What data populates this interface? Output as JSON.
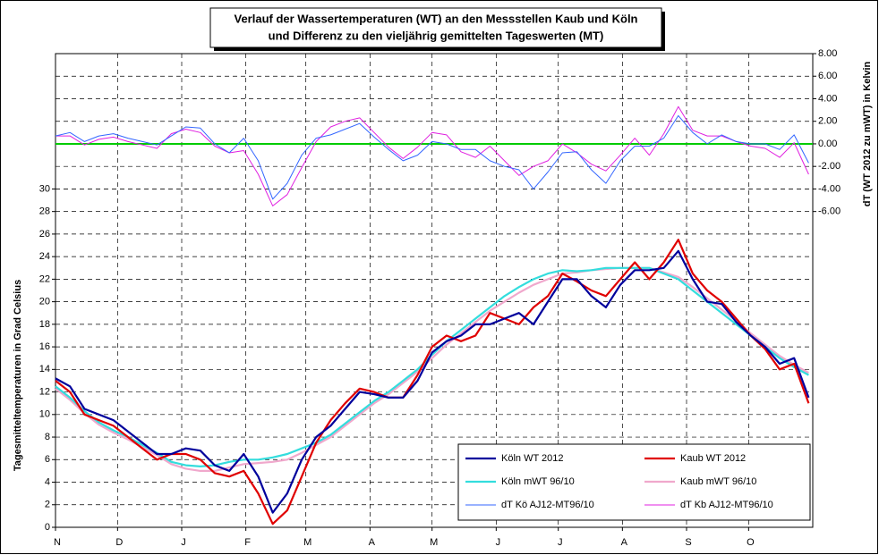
{
  "chart_data": {
    "type": "line",
    "title": [
      "Verlauf der Wassertemperaturen (WT) an den Messstellen Kaub und Köln",
      "und Differenz zu den vieljährig gemittelten Tageswerten (MT)"
    ],
    "y_label": "Tagesmitteltemperaturen in Grad Celsius",
    "y2_label": "dT (WT 2012 zu mWT) in Kelvin",
    "xlim": [
      0,
      366
    ],
    "xticks": [
      {
        "value": 0,
        "label": "N"
      },
      {
        "value": 30,
        "label": "D"
      },
      {
        "value": 61,
        "label": "J"
      },
      {
        "value": 92,
        "label": "F"
      },
      {
        "value": 121,
        "label": "M"
      },
      {
        "value": 152,
        "label": "A"
      },
      {
        "value": 182,
        "label": "M"
      },
      {
        "value": 213,
        "label": "J"
      },
      {
        "value": 243,
        "label": "J"
      },
      {
        "value": 274,
        "label": "A"
      },
      {
        "value": 305,
        "label": "S"
      },
      {
        "value": 335,
        "label": "O"
      }
    ],
    "ylim": [
      0,
      42
    ],
    "yticks": [
      0,
      2,
      4,
      6,
      8,
      10,
      12,
      14,
      16,
      18,
      20,
      22,
      24,
      26,
      28,
      30
    ],
    "y2lim": [
      -34,
      8
    ],
    "y2ticks": [
      {
        "value": 8,
        "label": "8.00"
      },
      {
        "value": 6,
        "label": "6.00"
      },
      {
        "value": 4,
        "label": "4.00"
      },
      {
        "value": 2,
        "label": "2.00"
      },
      {
        "value": 0,
        "label": "0.00"
      },
      {
        "value": -2,
        "label": "-2.00"
      },
      {
        "value": -4,
        "label": "-4.00"
      },
      {
        "value": -6,
        "label": "-6.00"
      }
    ],
    "grid": true,
    "zero_line_color": "#00cc00",
    "legend": "lower right",
    "x": [
      0,
      7,
      14,
      21,
      28,
      35,
      42,
      49,
      56,
      63,
      70,
      77,
      84,
      91,
      98,
      105,
      112,
      119,
      126,
      133,
      140,
      147,
      154,
      161,
      168,
      175,
      182,
      189,
      196,
      203,
      210,
      217,
      224,
      231,
      238,
      245,
      252,
      259,
      266,
      273,
      280,
      287,
      294,
      301,
      308,
      315,
      322,
      329,
      336,
      343,
      350,
      357,
      364
    ],
    "series": [
      {
        "name": "Köln WT 2012",
        "color": "#00009c",
        "width": 2.2,
        "values": [
          13.2,
          12.5,
          10.5,
          10.0,
          9.5,
          8.5,
          7.5,
          6.5,
          6.5,
          7.0,
          6.8,
          5.5,
          5.0,
          6.5,
          4.5,
          1.3,
          3.0,
          6.0,
          8.0,
          9.0,
          10.5,
          12.0,
          11.8,
          11.5,
          11.5,
          13.0,
          15.5,
          16.5,
          17.0,
          18.0,
          18.0,
          18.5,
          19.0,
          18.0,
          20.0,
          22.0,
          22.0,
          20.5,
          19.5,
          21.5,
          22.8,
          22.8,
          23.0,
          24.5,
          22.0,
          20.0,
          19.8,
          18.2,
          17.0,
          16.0,
          14.5,
          15.0,
          11.5
        ]
      },
      {
        "name": "Kaub WT 2012",
        "color": "#e00000",
        "width": 2.2,
        "values": [
          13.0,
          12.0,
          10.0,
          9.5,
          9.0,
          8.0,
          7.0,
          6.0,
          6.5,
          6.5,
          6.0,
          4.8,
          4.5,
          5.0,
          3.0,
          0.3,
          1.5,
          4.5,
          7.5,
          9.5,
          11.0,
          12.3,
          12.0,
          11.5,
          11.5,
          13.5,
          16.0,
          17.0,
          16.5,
          17.0,
          19.0,
          18.5,
          18.0,
          19.5,
          20.5,
          22.5,
          21.8,
          21.0,
          20.5,
          22.0,
          23.5,
          22.0,
          23.5,
          25.5,
          22.5,
          21.0,
          20.0,
          18.5,
          17.0,
          15.8,
          14.0,
          14.5,
          11.0
        ]
      },
      {
        "name": "Köln mWT 96/10",
        "color": "#33dddd",
        "width": 2.2,
        "values": [
          12.5,
          11.5,
          10.3,
          9.3,
          8.6,
          8.0,
          7.3,
          6.6,
          5.8,
          5.5,
          5.4,
          5.5,
          5.8,
          6.0,
          6.0,
          6.2,
          6.5,
          7.0,
          7.5,
          8.2,
          9.2,
          10.2,
          11.2,
          12.0,
          13.0,
          14.0,
          15.3,
          16.5,
          17.5,
          18.5,
          19.5,
          20.5,
          21.3,
          22.0,
          22.5,
          22.8,
          22.7,
          22.8,
          23.0,
          23.0,
          23.0,
          23.0,
          22.5,
          22.0,
          21.0,
          20.0,
          19.0,
          18.0,
          17.0,
          16.0,
          15.0,
          14.2,
          13.5
        ]
      },
      {
        "name": "Kaub mWT 96/10",
        "color": "#f0a8cc",
        "width": 2.2,
        "values": [
          12.3,
          11.3,
          10.1,
          9.1,
          8.4,
          7.8,
          7.1,
          6.4,
          5.6,
          5.2,
          5.0,
          5.0,
          5.3,
          5.6,
          5.7,
          5.8,
          6.0,
          6.6,
          7.3,
          8.0,
          9.0,
          10.0,
          11.0,
          11.8,
          12.8,
          13.8,
          15.0,
          16.2,
          17.2,
          18.2,
          19.2,
          20.0,
          20.8,
          21.5,
          22.0,
          22.5,
          22.6,
          22.8,
          22.9,
          23.0,
          23.0,
          23.0,
          22.6,
          22.2,
          21.3,
          20.3,
          19.3,
          18.3,
          17.2,
          16.2,
          15.2,
          14.4,
          13.7
        ]
      },
      {
        "name": "dT Kö AJ12-MT96/10",
        "color": "#3366ff",
        "width": 1,
        "axis": "y2",
        "values": [
          0.7,
          1.0,
          0.2,
          0.7,
          0.9,
          0.5,
          0.2,
          -0.1,
          0.7,
          1.5,
          1.4,
          0.0,
          -0.8,
          0.5,
          -1.5,
          -4.9,
          -3.5,
          -1.0,
          0.5,
          0.8,
          1.3,
          1.8,
          0.6,
          -0.5,
          -1.5,
          -1.0,
          0.2,
          0.0,
          -0.5,
          -0.5,
          -1.5,
          -2.0,
          -2.3,
          -4.0,
          -2.5,
          -0.8,
          -0.7,
          -2.3,
          -3.5,
          -1.5,
          -0.2,
          -0.2,
          0.5,
          2.5,
          1.0,
          0.0,
          0.8,
          0.2,
          0.0,
          0.0,
          -0.5,
          0.8,
          -1.7
        ]
      },
      {
        "name": "dT Kb AJ12-MT96/10",
        "color": "#e020e0",
        "width": 1,
        "axis": "y2",
        "values": [
          0.7,
          0.7,
          -0.1,
          0.4,
          0.6,
          0.2,
          -0.1,
          -0.4,
          0.9,
          1.3,
          1.0,
          -0.2,
          -0.8,
          -0.6,
          -2.7,
          -5.5,
          -4.5,
          -2.1,
          0.2,
          1.5,
          2.0,
          2.3,
          1.0,
          -0.3,
          -1.3,
          -0.3,
          1.0,
          0.8,
          -0.7,
          -1.2,
          -0.2,
          -1.5,
          -2.8,
          -2.0,
          -1.5,
          0.0,
          -0.8,
          -1.8,
          -2.4,
          -1.0,
          0.5,
          -1.0,
          0.9,
          3.3,
          1.2,
          0.7,
          0.7,
          0.2,
          -0.2,
          -0.4,
          -1.2,
          0.1,
          -2.7
        ]
      }
    ]
  }
}
